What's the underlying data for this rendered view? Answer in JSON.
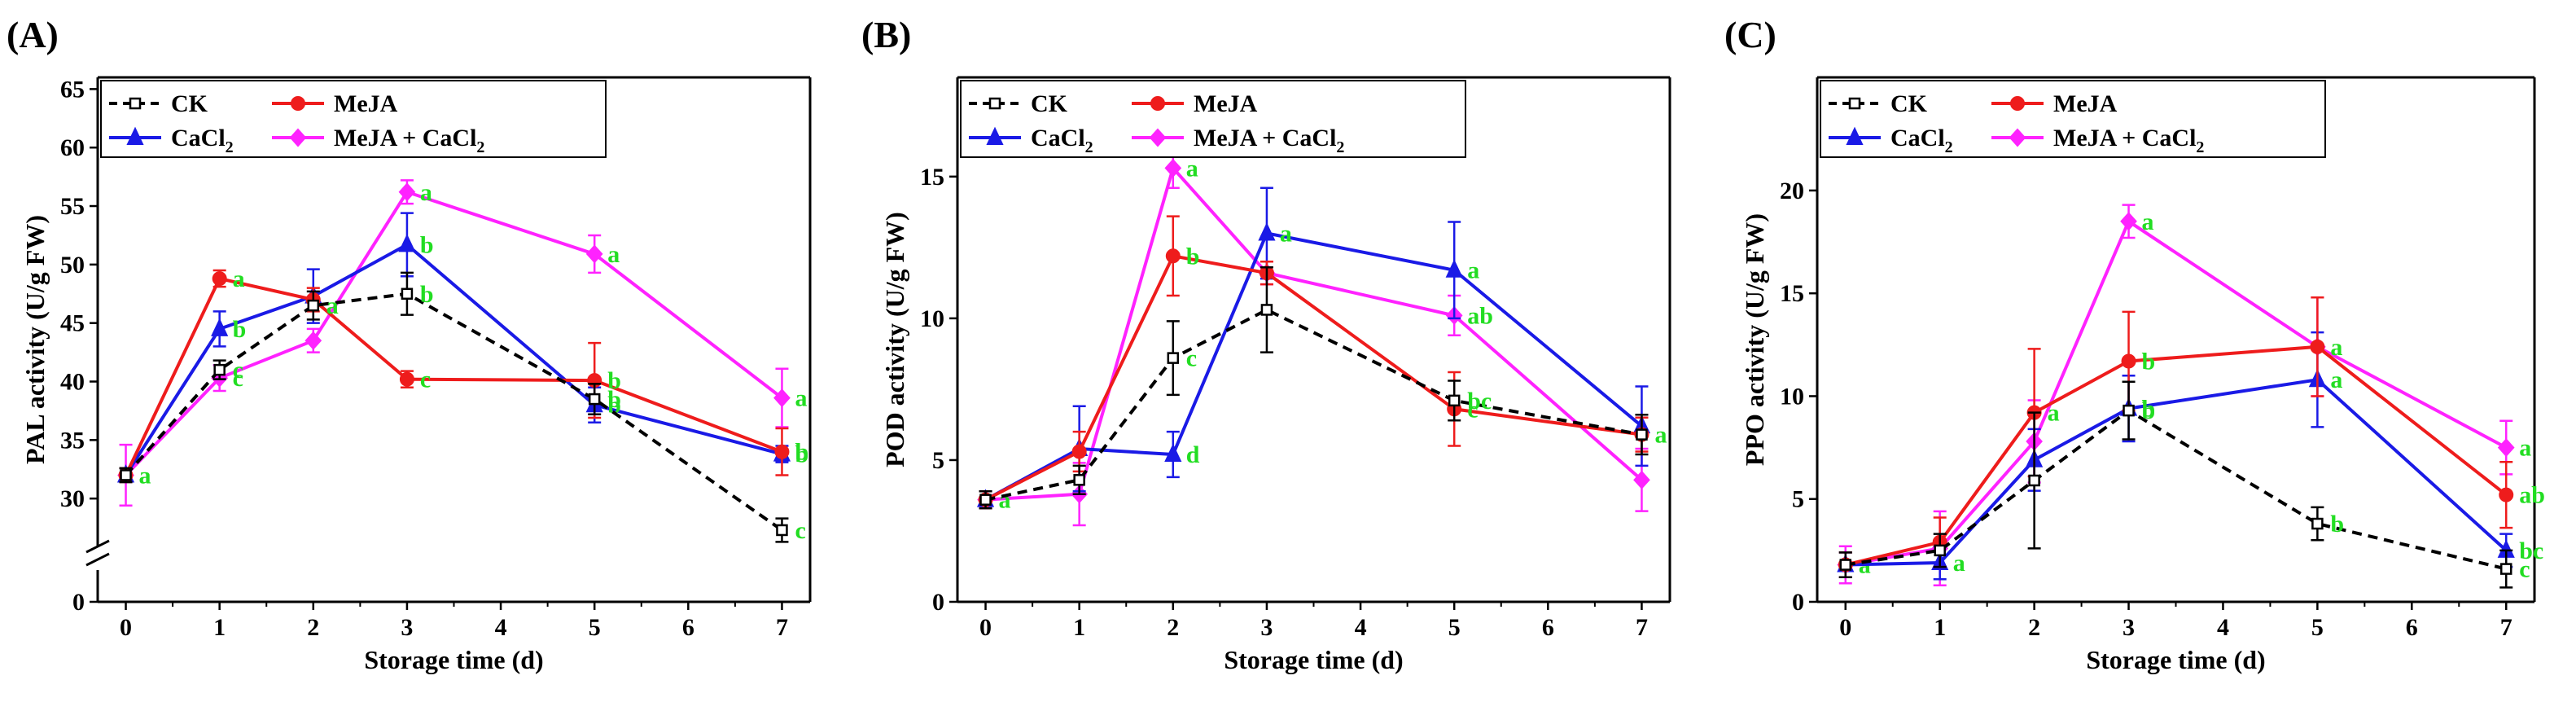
{
  "colors": {
    "CK": "#000000",
    "MeJA": "#ee1c1c",
    "CaCl2": "#1a1ae6",
    "MeJA + CaCl2": "#ff22ff",
    "letters": "#22dd22"
  },
  "chart_data": [
    {
      "type": "line",
      "panel_label": "(A)",
      "xlabel": "Storage time (d)",
      "ylabel": "PAL activity (U/g FW)",
      "x": [
        0,
        1,
        2,
        3,
        5,
        7
      ],
      "xlim": [
        -0.3,
        7.3
      ],
      "ylim": [
        25,
        66
      ],
      "axis_break": true,
      "xticks": [
        "0",
        "1",
        "2",
        "3",
        "4",
        "5",
        "6",
        "7"
      ],
      "yticks": [
        "0",
        "30",
        "35",
        "40",
        "45",
        "50",
        "55",
        "60",
        "65"
      ],
      "legend": {
        "entries": [
          "CK",
          "MeJA",
          "CaCl2",
          "MeJA + CaCl2"
        ],
        "position": "top-left"
      },
      "series": [
        {
          "name": "CK",
          "style": "dashed",
          "marker": "open-square",
          "values": [
            32,
            41,
            46.5,
            47.5,
            38.5,
            27.3
          ],
          "errors": [
            0.6,
            0.8,
            1.2,
            1.8,
            1.3,
            1.0
          ],
          "letters": [
            "",
            "c",
            "a",
            "b",
            "b",
            "c"
          ]
        },
        {
          "name": "MeJA",
          "style": "solid",
          "marker": "circle",
          "values": [
            32,
            48.8,
            47,
            40.2,
            40.1,
            34
          ],
          "errors": [
            0.6,
            0.7,
            1.0,
            0.7,
            3.2,
            2.0
          ],
          "letters": [
            "",
            "a",
            "",
            "c",
            "b",
            "b"
          ]
        },
        {
          "name": "CaCl2",
          "style": "solid",
          "marker": "triangle",
          "values": [
            32,
            44.5,
            47.3,
            51.7,
            38,
            33.8
          ],
          "errors": [
            0.6,
            1.5,
            2.3,
            2.7,
            1.5,
            0.7
          ],
          "letters": [
            "",
            "b",
            "",
            "b",
            "b",
            "b"
          ]
        },
        {
          "name": "MeJA + CaCl2",
          "style": "solid",
          "marker": "diamond",
          "values": [
            32,
            40.3,
            43.5,
            56.2,
            50.9,
            38.6
          ],
          "errors": [
            2.6,
            1.1,
            1.0,
            1.0,
            1.6,
            2.5
          ],
          "letters": [
            "a",
            "c",
            "",
            "a",
            "a",
            "a"
          ]
        }
      ]
    },
    {
      "type": "line",
      "panel_label": "(B)",
      "xlabel": "Storage time (d)",
      "ylabel": "POD activity (U/g FW)",
      "x": [
        0,
        1,
        2,
        3,
        5,
        7
      ],
      "xlim": [
        -0.3,
        7.3
      ],
      "ylim": [
        0,
        18.5
      ],
      "axis_break": false,
      "xticks": [
        "0",
        "1",
        "2",
        "3",
        "4",
        "5",
        "6",
        "7"
      ],
      "yticks": [
        "0",
        "5",
        "10",
        "15"
      ],
      "legend": {
        "entries": [
          "CK",
          "MeJA",
          "CaCl2",
          "MeJA + CaCl2"
        ],
        "position": "top-left"
      },
      "series": [
        {
          "name": "CK",
          "style": "dashed",
          "marker": "open-square",
          "values": [
            3.6,
            4.3,
            8.6,
            10.3,
            7.1,
            5.9
          ],
          "errors": [
            0.3,
            0.5,
            1.3,
            1.5,
            0.7,
            0.7
          ],
          "letters": [
            "",
            "",
            "c",
            "",
            "bc",
            ""
          ]
        },
        {
          "name": "MeJA",
          "style": "solid",
          "marker": "circle",
          "values": [
            3.6,
            5.3,
            12.2,
            11.6,
            6.8,
            5.9
          ],
          "errors": [
            0.3,
            0.7,
            1.4,
            0.4,
            1.3,
            0.6
          ],
          "letters": [
            "",
            "",
            "b",
            "",
            "c",
            "a"
          ]
        },
        {
          "name": "CaCl2",
          "style": "solid",
          "marker": "triangle",
          "values": [
            3.6,
            5.4,
            5.2,
            13,
            11.7,
            6.2
          ],
          "errors": [
            0.3,
            1.5,
            0.8,
            1.6,
            1.7,
            1.4
          ],
          "letters": [
            "",
            "",
            "d",
            "a",
            "a",
            ""
          ]
        },
        {
          "name": "MeJA + CaCl2",
          "style": "solid",
          "marker": "diamond",
          "values": [
            3.6,
            3.8,
            15.3,
            11.6,
            10.1,
            4.3
          ],
          "errors": [
            0.3,
            1.1,
            0.7,
            0.4,
            0.7,
            1.1
          ],
          "letters": [
            "a",
            "",
            "a",
            "",
            "ab",
            ""
          ]
        }
      ]
    },
    {
      "type": "line",
      "panel_label": "(C)",
      "xlabel": "Storage time (d)",
      "ylabel": "PPO activity (U/g FW)",
      "x": [
        0,
        1,
        2,
        3,
        5,
        7
      ],
      "xlim": [
        -0.3,
        7.3
      ],
      "ylim": [
        0,
        25.5
      ],
      "axis_break": false,
      "xticks": [
        "0",
        "1",
        "2",
        "3",
        "4",
        "5",
        "6",
        "7"
      ],
      "yticks": [
        "0",
        "5",
        "10",
        "15",
        "20"
      ],
      "legend": {
        "entries": [
          "CK",
          "MeJA",
          "CaCl2",
          "MeJA + CaCl2"
        ],
        "position": "top-left"
      },
      "series": [
        {
          "name": "CK",
          "style": "dashed",
          "marker": "open-square",
          "values": [
            1.8,
            2.5,
            5.9,
            9.3,
            3.8,
            1.6
          ],
          "errors": [
            0.6,
            0.8,
            3.3,
            1.4,
            0.8,
            0.9
          ],
          "letters": [
            "",
            "",
            "",
            "b",
            "b",
            "c"
          ]
        },
        {
          "name": "MeJA",
          "style": "solid",
          "marker": "circle",
          "values": [
            1.8,
            2.9,
            9.2,
            11.7,
            12.4,
            5.2
          ],
          "errors": [
            0.6,
            1.2,
            3.1,
            2.4,
            2.4,
            1.6
          ],
          "letters": [
            "",
            "",
            "a",
            "b",
            "a",
            "ab"
          ]
        },
        {
          "name": "CaCl2",
          "style": "solid",
          "marker": "triangle",
          "values": [
            1.8,
            1.9,
            6.9,
            9.4,
            10.8,
            2.5
          ],
          "errors": [
            0.6,
            0.8,
            1.5,
            1.6,
            2.3,
            0.8
          ],
          "letters": [
            "",
            "a",
            "",
            "b",
            "a",
            "bc"
          ]
        },
        {
          "name": "MeJA + CaCl2",
          "style": "solid",
          "marker": "diamond",
          "values": [
            1.8,
            2.6,
            7.8,
            18.5,
            12.4,
            7.5
          ],
          "errors": [
            0.9,
            1.8,
            2.0,
            0.8,
            2.4,
            1.3
          ],
          "letters": [
            "a",
            "",
            "",
            "a",
            "",
            "a"
          ]
        }
      ]
    }
  ]
}
